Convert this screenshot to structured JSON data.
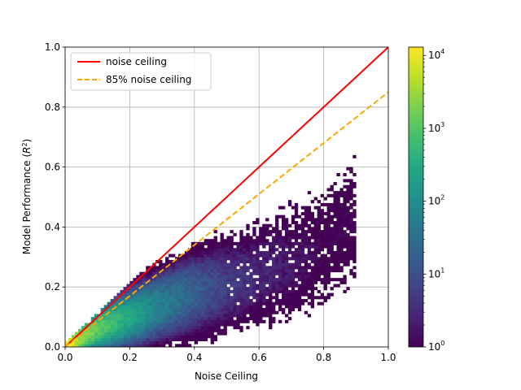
{
  "chart_data": {
    "type": "heatmap",
    "xlabel": "Noise Ceiling",
    "ylabel": "Model Performance (R²)",
    "xlim": [
      0,
      1
    ],
    "ylim": [
      0,
      1
    ],
    "x_ticks": [
      "0.0",
      "0.2",
      "0.4",
      "0.6",
      "0.8",
      "1.0"
    ],
    "y_ticks": [
      "0.0",
      "0.2",
      "0.4",
      "0.6",
      "0.8",
      "1.0"
    ],
    "x_tick_values": [
      0,
      0.2,
      0.4,
      0.6,
      0.8,
      1.0
    ],
    "y_tick_values": [
      0,
      0.2,
      0.4,
      0.6,
      0.8,
      1.0
    ],
    "grid": true,
    "legend_position": "upper-left",
    "lines": [
      {
        "name": "noise ceiling",
        "color": "#ff0000",
        "style": "solid",
        "x": [
          0,
          1
        ],
        "y": [
          0,
          1
        ]
      },
      {
        "name": "85% noise ceiling",
        "color": "#ffa500",
        "style": "dashed",
        "x": [
          0,
          1
        ],
        "y": [
          0,
          0.85
        ]
      }
    ],
    "colorbar": {
      "scale": "log",
      "colormap": "viridis",
      "range": [
        1,
        13000
      ],
      "ticks": [
        {
          "value": 1,
          "base": "10",
          "exp": "0"
        },
        {
          "value": 10,
          "base": "10",
          "exp": "1"
        },
        {
          "value": 100,
          "base": "10",
          "exp": "2"
        },
        {
          "value": 1000,
          "base": "10",
          "exp": "3"
        },
        {
          "value": 10000,
          "base": "10",
          "exp": "4"
        }
      ]
    },
    "histogram": {
      "description_bins": 100,
      "density_ridge": [
        {
          "x": 0.01,
          "y": 0.005,
          "count": 13000
        },
        {
          "x": 0.05,
          "y": 0.03,
          "count": 3000
        },
        {
          "x": 0.1,
          "y": 0.06,
          "count": 1500
        },
        {
          "x": 0.2,
          "y": 0.1,
          "count": 300
        },
        {
          "x": 0.3,
          "y": 0.14,
          "count": 60
        },
        {
          "x": 0.4,
          "y": 0.18,
          "count": 20
        },
        {
          "x": 0.5,
          "y": 0.21,
          "count": 6
        },
        {
          "x": 0.6,
          "y": 0.24,
          "count": 3
        },
        {
          "x": 0.7,
          "y": 0.28,
          "count": 2
        },
        {
          "x": 0.8,
          "y": 0.33,
          "count": 1
        },
        {
          "x": 0.88,
          "y": 0.42,
          "count": 1
        }
      ]
    }
  }
}
